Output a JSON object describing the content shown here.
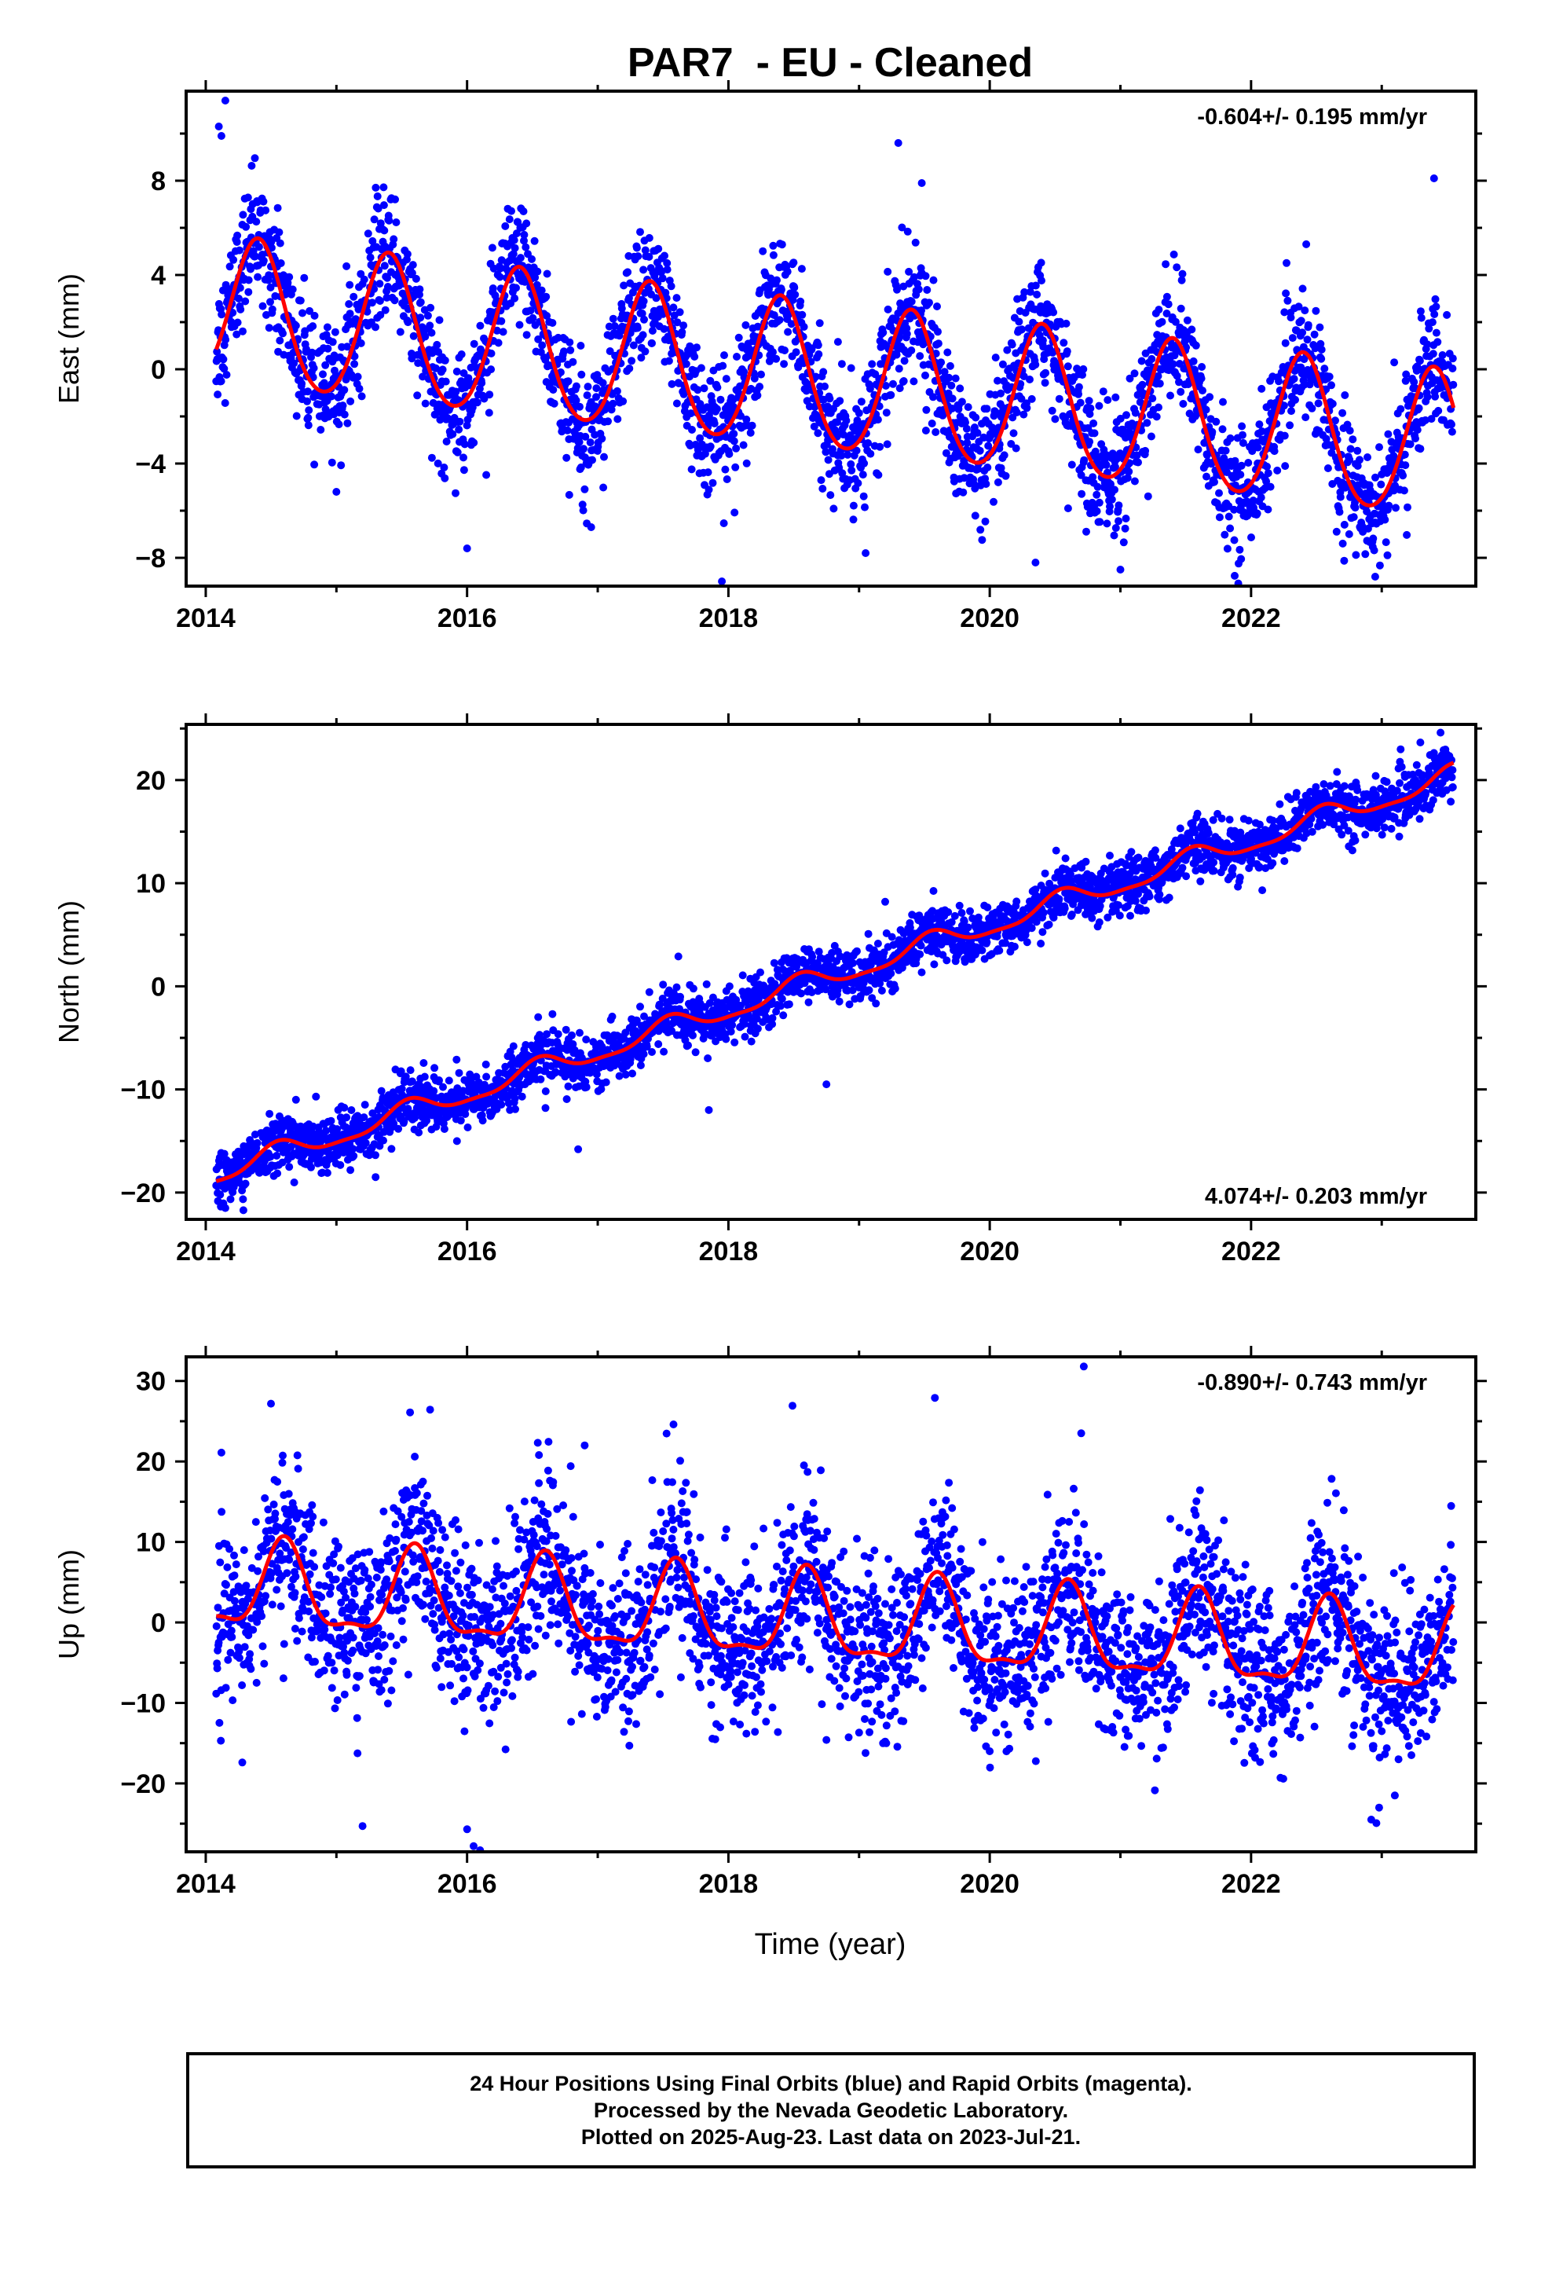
{
  "title": "PAR7  - EU - Cleaned",
  "xlabel": "Time (year)",
  "footer": {
    "line1": "24 Hour Positions Using Final Orbits (blue) and Rapid Orbits (magenta).",
    "line2": "Processed by the Nevada Geodetic Laboratory.",
    "line3": "Plotted on 2025-Aug-23. Last data on 2023-Jul-21."
  },
  "colors": {
    "points": "#0000ff",
    "model": "#ff0000",
    "frame": "#000000"
  },
  "chart_data": [
    {
      "type": "scatter",
      "name": "East",
      "ylabel": "East (mm)",
      "rate_text": "-0.604+/- 0.195 mm/yr",
      "rate_position": "top-right",
      "xlim": [
        2013.85,
        2023.72
      ],
      "ylim": [
        -9.2,
        11.8
      ],
      "xticks": [
        2014,
        2016,
        2018,
        2020,
        2022
      ],
      "yticks": [
        -8,
        -4,
        0,
        4,
        8
      ],
      "data_start": 2014.08,
      "data_end": 2023.55,
      "model": {
        "offset": 2.35,
        "rate": -0.604,
        "annual_amplitude": 3.1,
        "peak_phase": 0.4,
        "semiannual_amplitude": 0.3,
        "scatter": 1.3
      },
      "outliers": [
        [
          2014.1,
          10.3
        ],
        [
          2014.12,
          9.9
        ],
        [
          2014.15,
          11.4
        ],
        [
          2019.3,
          9.6
        ],
        [
          2019.48,
          7.9
        ],
        [
          2023.4,
          8.1
        ],
        [
          2017.95,
          -9.0
        ],
        [
          2020.35,
          -8.2
        ],
        [
          2022.95,
          -8.8
        ],
        [
          2016.0,
          -7.6
        ],
        [
          2016.95,
          -6.7
        ],
        [
          2019.05,
          -7.8
        ],
        [
          2015.0,
          -5.2
        ],
        [
          2020.6,
          -5.9
        ],
        [
          2021.0,
          -8.5
        ]
      ]
    },
    {
      "type": "scatter",
      "name": "North",
      "ylabel": "North (mm)",
      "rate_text": "4.074+/- 0.203 mm/yr",
      "rate_position": "bottom-right",
      "xlim": [
        2013.85,
        2023.72
      ],
      "ylim": [
        -22.6,
        25.4
      ],
      "xticks": [
        2014,
        2016,
        2018,
        2020,
        2022
      ],
      "yticks": [
        -20,
        -10,
        0,
        10,
        20
      ],
      "data_start": 2014.08,
      "data_end": 2023.55,
      "model": {
        "offset": -18.2,
        "rate": 4.074,
        "annual_amplitude": 1.0,
        "peak_phase": 0.55,
        "semiannual_amplitude": 0.3,
        "scatter": 1.3
      },
      "outliers": [
        [
          2016.85,
          -15.8
        ],
        [
          2017.85,
          -12.0
        ],
        [
          2018.75,
          -9.5
        ],
        [
          2019.2,
          8.2
        ],
        [
          2014.15,
          -21.5
        ],
        [
          2023.45,
          24.6
        ],
        [
          2016.6,
          -11.8
        ],
        [
          2015.3,
          -18.5
        ]
      ]
    },
    {
      "type": "scatter",
      "name": "Up",
      "ylabel": "Up (mm)",
      "rate_text": "-0.890+/- 0.743 mm/yr",
      "rate_position": "top-right",
      "xlim": [
        2013.85,
        2023.72
      ],
      "ylim": [
        -28.5,
        33.0
      ],
      "xticks": [
        2014,
        2016,
        2018,
        2020,
        2022
      ],
      "yticks": [
        -20,
        -10,
        0,
        10,
        20,
        30
      ],
      "data_start": 2014.08,
      "data_end": 2023.55,
      "model": {
        "offset": 4.2,
        "rate": -0.89,
        "annual_amplitude": 5.2,
        "peak_phase": 0.6,
        "semiannual_amplitude": 1.8,
        "scatter": 5.2
      },
      "outliers": [
        [
          2020.72,
          31.8
        ],
        [
          2019.58,
          27.9
        ],
        [
          2017.58,
          24.6
        ],
        [
          2014.12,
          21.1
        ],
        [
          2015.6,
          20.6
        ],
        [
          2016.55,
          20.8
        ],
        [
          2016.9,
          22.0
        ],
        [
          2020.7,
          23.5
        ],
        [
          2016.0,
          -25.7
        ],
        [
          2016.05,
          -27.8
        ],
        [
          2016.1,
          -28.3
        ],
        [
          2015.2,
          -25.3
        ],
        [
          2014.28,
          -17.4
        ],
        [
          2022.92,
          -24.5
        ],
        [
          2022.98,
          -23.0
        ],
        [
          2019.2,
          -14.8
        ],
        [
          2018.75,
          -14.6
        ],
        [
          2020.0,
          -16.0
        ],
        [
          2023.1,
          -21.5
        ]
      ]
    }
  ]
}
